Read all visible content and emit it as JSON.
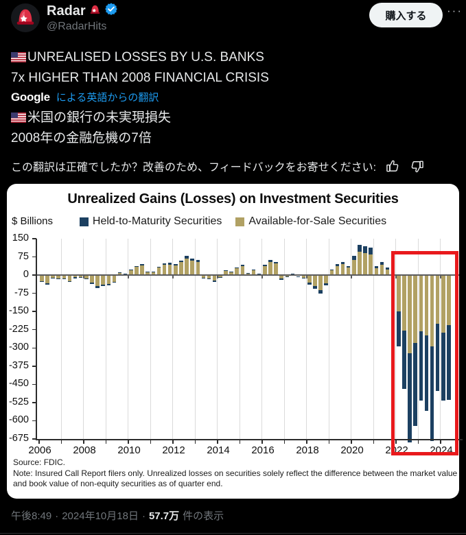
{
  "colors": {
    "accent": "#1d9bf0",
    "background": "#000000",
    "text_primary": "#e7e9ea",
    "text_secondary": "#71767b",
    "htm_navy": "#1c4061",
    "afs_tan": "#b1a164",
    "highlight_red": "#e8191c"
  },
  "header": {
    "display_name": "Radar",
    "handle": "@RadarHits",
    "buy_button_label": "購入する",
    "more_label": "···"
  },
  "tweet": {
    "line1": "UNREALISED LOSSES BY U.S. BANKS",
    "line2": "7x HIGHER THAN 2008 FINANCIAL CRISIS",
    "google_label": "Google",
    "translate_link": "による英語からの翻訳",
    "jp_line1": "米国の銀行の未実現損失",
    "jp_line2": "2008年の金融危機の7倍",
    "feedback_prompt": "この翻訳は正確でしたか？改善のため、フィードバックをお寄せください:"
  },
  "chart_data": {
    "type": "bar",
    "stacked": true,
    "title": "Unrealized Gains (Losses) on Investment Securities",
    "ylabel": "$ Billions",
    "ylim": [
      -675,
      150
    ],
    "yticks": [
      150,
      75,
      0,
      -75,
      -150,
      -225,
      -300,
      -375,
      -450,
      -525,
      -600,
      -675
    ],
    "xticks": [
      2006,
      2008,
      2010,
      2012,
      2014,
      2016,
      2018,
      2020,
      2022,
      2024
    ],
    "x_range": {
      "start": "2006 Q1",
      "end": "2024 Q2",
      "frequency": "quarterly"
    },
    "grid": "vertical-yearly",
    "legend_position": "top-center",
    "legend": [
      {
        "label": "Held-to-Maturity Securities",
        "color": "#1c4061"
      },
      {
        "label": "Available-for-Sale Securities",
        "color": "#b1a164"
      }
    ],
    "series": [
      {
        "name": "Available-for-Sale Securities",
        "color": "#b1a164",
        "values": [
          -24,
          -33,
          -10,
          -13,
          -13,
          -25,
          -9,
          -7,
          -15,
          -32,
          -45,
          -38,
          -36,
          -27,
          10,
          4,
          20,
          34,
          40,
          13,
          13,
          31,
          42,
          44,
          40,
          53,
          68,
          60,
          55,
          -10,
          -14,
          -22,
          -8,
          18,
          13,
          28,
          36,
          8,
          19,
          6,
          36,
          54,
          47,
          -15,
          -6,
          4,
          -4,
          -10,
          -32,
          -46,
          -62,
          -34,
          20,
          38,
          46,
          31,
          62,
          95,
          90,
          85,
          28,
          42,
          22,
          15,
          -150,
          -230,
          -322,
          -280,
          -232,
          -248,
          -293,
          -201,
          -236,
          -205
        ]
      },
      {
        "name": "Held-to-Maturity Securities",
        "color": "#1c4061",
        "values": [
          -2,
          -5,
          -2,
          -4,
          -2,
          -3,
          -4,
          -1,
          -2,
          -4,
          -8,
          -7,
          -7,
          -3,
          2,
          1,
          2,
          4,
          6,
          2,
          2,
          4,
          6,
          6,
          5,
          7,
          10,
          8,
          7,
          -3,
          -4,
          -6,
          -2,
          3,
          2,
          4,
          6,
          2,
          3,
          1,
          6,
          9,
          8,
          -4,
          -2,
          1,
          -1,
          -3,
          -7,
          -10,
          -15,
          -8,
          4,
          7,
          9,
          6,
          18,
          30,
          28,
          27,
          8,
          13,
          8,
          -15,
          -145,
          -240,
          -368,
          -340,
          -284,
          -310,
          -390,
          -277,
          -280,
          -308
        ]
      }
    ],
    "highlight_box": {
      "from": "2022 Q1",
      "to": "2024 Q2",
      "y_top": 100,
      "color": "#e8191c"
    },
    "source": "Source: FDIC.",
    "note": "Note: Insured Call Report filers only. Unrealized losses on securities solely reflect the difference between the market value and book value of non-equity securities as of quarter end."
  },
  "footer": {
    "time": "午後8:49",
    "separator": "·",
    "date": "2024年10月18日",
    "views_count": "57.7万",
    "views_suffix": "件の表示"
  }
}
